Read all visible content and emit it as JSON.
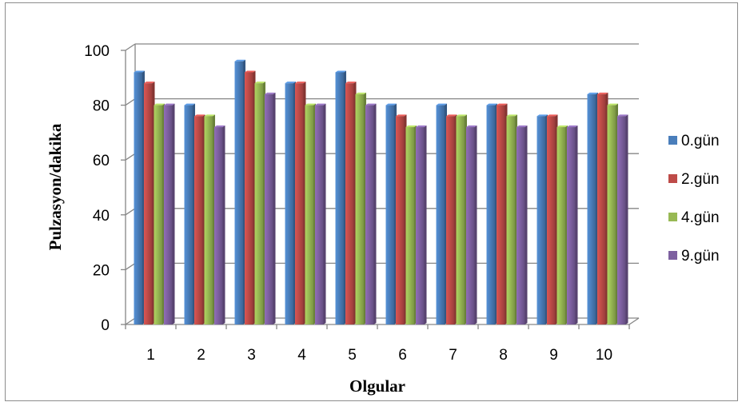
{
  "chart_data": {
    "type": "bar",
    "title": "",
    "xlabel": "Olgular",
    "ylabel": "Pulzasyon/dakika",
    "categories": [
      "1",
      "2",
      "3",
      "4",
      "5",
      "6",
      "7",
      "8",
      "9",
      "10"
    ],
    "yticks": [
      "0",
      "20",
      "40",
      "60",
      "80",
      "100"
    ],
    "ylim": [
      0,
      100
    ],
    "grid": true,
    "legend_position": "right",
    "series": [
      {
        "name": "0.gün",
        "color": "#4a7ebb",
        "values": [
          92,
          80,
          96,
          88,
          92,
          80,
          80,
          80,
          76,
          84
        ]
      },
      {
        "name": "2.gün",
        "color": "#be4b48",
        "values": [
          88,
          76,
          92,
          88,
          88,
          76,
          76,
          80,
          76,
          84
        ]
      },
      {
        "name": "4.gün",
        "color": "#98b954",
        "values": [
          80,
          76,
          88,
          80,
          84,
          72,
          76,
          76,
          72,
          80
        ]
      },
      {
        "name": "9.gün",
        "color": "#7d60a0",
        "values": [
          80,
          72,
          84,
          80,
          80,
          72,
          72,
          72,
          72,
          76
        ]
      }
    ]
  }
}
